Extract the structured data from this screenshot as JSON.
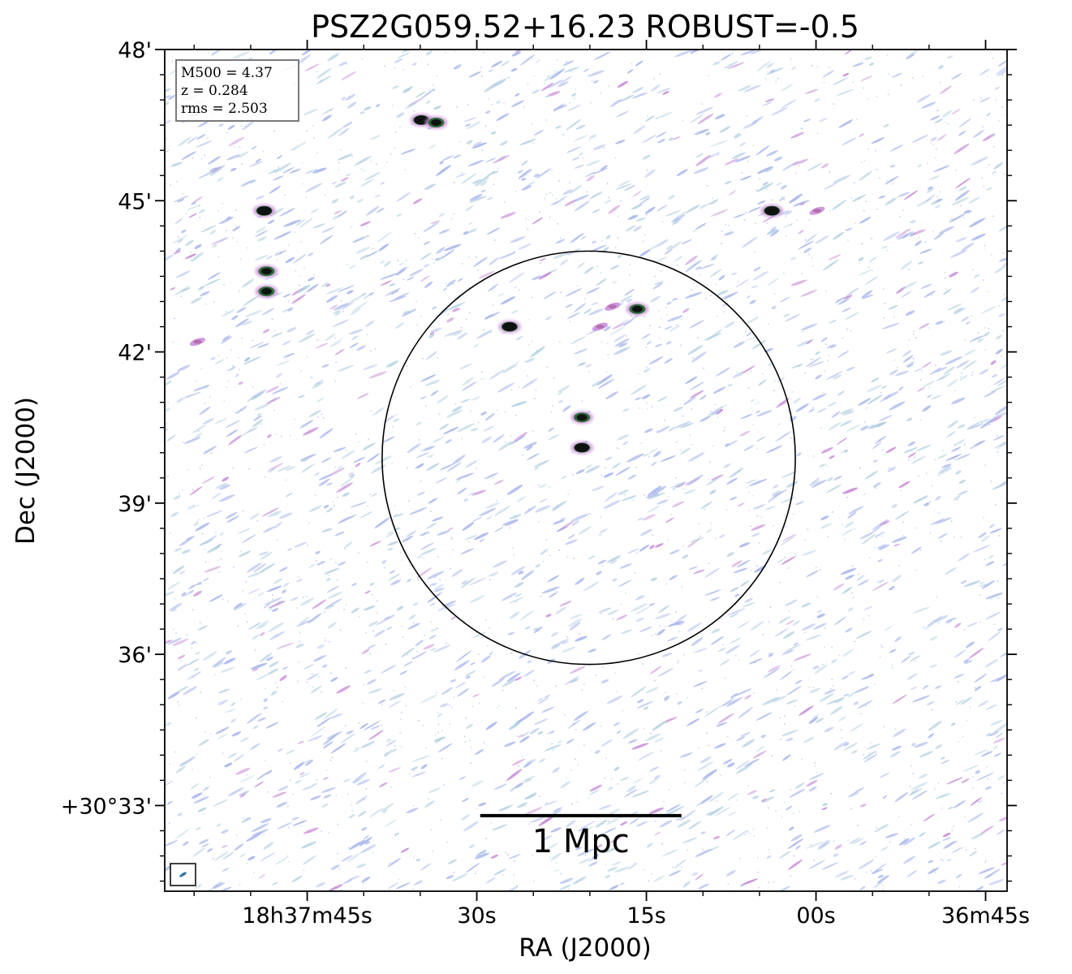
{
  "chart_data": {
    "type": "heatmap",
    "title": "PSZ2G059.52+16.23 ROBUST=-0.5",
    "xlabel": "RA (J2000)",
    "ylabel": "Dec (J2000)",
    "x_ticks": [
      {
        "label": "18h37m45s",
        "ra_sec": 45
      },
      {
        "label": "30s",
        "ra_sec": 30
      },
      {
        "label": "15s",
        "ra_sec": 15
      },
      {
        "label": "00s",
        "ra_sec": 0
      },
      {
        "label": "36m45s",
        "ra_sec": -15
      }
    ],
    "y_ticks": [
      {
        "label": "48'",
        "dec_arcmin": 48
      },
      {
        "label": "45'",
        "dec_arcmin": 45
      },
      {
        "label": "42'",
        "dec_arcmin": 42
      },
      {
        "label": "39'",
        "dec_arcmin": 39
      },
      {
        "label": "36'",
        "dec_arcmin": 36
      },
      {
        "label": "+30°33'",
        "dec_arcmin": 33
      }
    ],
    "xlim_ra_sec": [
      57.6,
      -16.9
    ],
    "ylim_dec_arcmin": [
      31.3,
      48.0
    ],
    "info": {
      "m500": "M500 = 4.37",
      "z": "z = 0.284",
      "rms": "rms = 2.503"
    },
    "circle": {
      "center_ra_sec": 20.1,
      "center_dec_arcmin": 39.9,
      "radius_arcmin": 4.1
    },
    "scale_bar": {
      "label": "1 Mpc",
      "from_ra_sec": 29.7,
      "to_ra_sec": 11.9,
      "dec_arcmin": 32.8
    },
    "sources": [
      {
        "ra_sec": 48.8,
        "dec_arcmin": 44.8,
        "tone": "dark"
      },
      {
        "ra_sec": 48.6,
        "dec_arcmin": 43.6,
        "tone": "mixed"
      },
      {
        "ra_sec": 48.6,
        "dec_arcmin": 43.2,
        "tone": "mixed"
      },
      {
        "ra_sec": 34.9,
        "dec_arcmin": 46.6,
        "tone": "dark"
      },
      {
        "ra_sec": 33.6,
        "dec_arcmin": 46.55,
        "tone": "mixed"
      },
      {
        "ra_sec": 27.1,
        "dec_arcmin": 42.5,
        "tone": "dark"
      },
      {
        "ra_sec": 15.8,
        "dec_arcmin": 42.85,
        "tone": "mixed"
      },
      {
        "ra_sec": 18.0,
        "dec_arcmin": 42.9,
        "tone": "faint"
      },
      {
        "ra_sec": 19.1,
        "dec_arcmin": 42.5,
        "tone": "faint"
      },
      {
        "ra_sec": 20.7,
        "dec_arcmin": 40.7,
        "tone": "mixed"
      },
      {
        "ra_sec": 20.7,
        "dec_arcmin": 40.1,
        "tone": "dark"
      },
      {
        "ra_sec": 3.9,
        "dec_arcmin": 44.8,
        "tone": "dark"
      },
      {
        "ra_sec": -0.1,
        "dec_arcmin": 44.8,
        "tone": "faint"
      },
      {
        "ra_sec": 54.7,
        "dec_arcmin": 42.2,
        "tone": "faint"
      }
    ],
    "beam_inset": true,
    "colors": {
      "noise_blue": "#a7b6ec",
      "noise_teal": "#b5d3e3",
      "noise_magenta": "#c98ad8",
      "source_dark": "#0d1410",
      "source_green": "#2f6b3a",
      "frame": "#000000"
    }
  }
}
